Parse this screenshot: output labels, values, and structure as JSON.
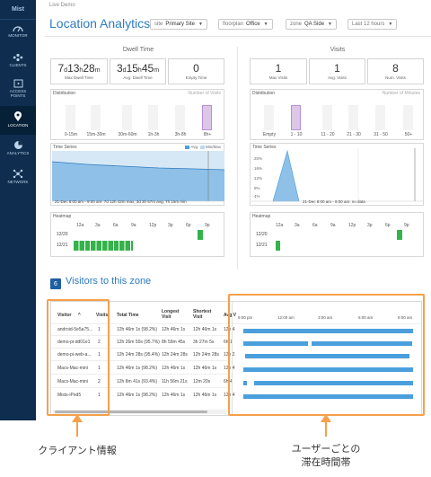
{
  "brand": "Mist",
  "nav": [
    {
      "label": "MONITOR",
      "icon": "gauge-icon"
    },
    {
      "label": "CLIENTS",
      "icon": "clients-icon"
    },
    {
      "label": "ACCESS POINTS",
      "icon": "access-point-icon"
    },
    {
      "label": "LOCATION",
      "icon": "location-pin-icon",
      "active": true
    },
    {
      "label": "ANALYTICS",
      "icon": "pie-chart-icon"
    },
    {
      "label": "NETWORK",
      "icon": "network-icon"
    }
  ],
  "breadcrumb": "Live Demo",
  "page_title": "Location Analytics",
  "filters": {
    "site": {
      "label": "site",
      "value": "Primary Site"
    },
    "floorplan": {
      "label": "floorplan",
      "value": "Office"
    },
    "zone": {
      "label": "zone",
      "value": "QA Side"
    },
    "range": {
      "value": "Last 12 hours"
    }
  },
  "dwell": {
    "title": "Dwell Time",
    "stats": [
      {
        "value_parts": [
          "7",
          "d",
          "13",
          "h",
          "28",
          "m"
        ],
        "label": "Max Dwell Time"
      },
      {
        "value_parts": [
          "3",
          "d",
          "15",
          "h",
          "45",
          "m"
        ],
        "label": "Avg. Dwell Time"
      },
      {
        "value_parts": [
          "0"
        ],
        "label": "Empty Time"
      }
    ],
    "distribution": {
      "title": "Distribution",
      "right": "Number of Visits",
      "categories": [
        "0-15m",
        "15m-30m",
        "30m-60m",
        "1h-3h",
        "3h-8h",
        "8h+"
      ],
      "highlight": 5
    },
    "timeseries": {
      "title": "Time Series",
      "legend": [
        "Avg",
        "Min/Max"
      ],
      "footer": "21-Dec 8:00 am - 9:00 am: 7d 12h 42m max, 3d 3h 57m avg, 7h 15m min"
    },
    "heatmap": {
      "title": "Heatmap",
      "hours": [
        "12a",
        "3a",
        "6a",
        "9a",
        "12p",
        "3p",
        "6p",
        "9p"
      ],
      "rows": [
        "12/20",
        "12/21"
      ]
    }
  },
  "visits": {
    "title": "Visits",
    "stats": [
      {
        "value": "1",
        "label": "Max Visits"
      },
      {
        "value": "1",
        "label": "Avg. Visits"
      },
      {
        "value": "8",
        "label": "Num. Visits"
      }
    ],
    "distribution": {
      "title": "Distribution",
      "right": "Number of Minutes",
      "categories": [
        "Empty",
        "1 - 10",
        "11 - 20",
        "21 - 30",
        "31 - 50",
        "50+"
      ],
      "highlight": 1
    },
    "timeseries": {
      "title": "Time Series",
      "footer": "21-Dec 8:00 am - 9:00 am: no data",
      "yticks": [
        "20%",
        "16%",
        "12%",
        "8%",
        "4%"
      ]
    },
    "heatmap": {
      "title": "Heatmap",
      "hours": [
        "12a",
        "3a",
        "6a",
        "9a",
        "12p",
        "3p",
        "6p",
        "9p"
      ],
      "rows": [
        "12/20",
        "12/21"
      ]
    }
  },
  "visitors": {
    "badge": "6",
    "title": "Visitors to this zone",
    "columns": [
      "Visitor",
      "Visits",
      "Total Time",
      "Longest Visit",
      "Shortest Visit",
      "Avg V"
    ],
    "rows": [
      {
        "visitor": "android-5e5a75...",
        "visits": "1",
        "total": "12h 46m 1s (98.2%)",
        "longest": "12h 46m 1s",
        "shortest": "12h 46m 1s",
        "avg": "12h 4"
      },
      {
        "visitor": "demo-pi-dd01e1",
        "visits": "2",
        "total": "12h 26m 50s (95.7%)",
        "longest": "8h 59m 45s",
        "shortest": "3h 27m 5s",
        "avg": "6h 1"
      },
      {
        "visitor": "demo-pi-web-a...",
        "visits": "1",
        "total": "12h 24m 28s (95.4%)",
        "longest": "12h 24m 28s",
        "shortest": "12h 24m 28s",
        "avg": "12h 2"
      },
      {
        "visitor": "Macs-Mac-mini",
        "visits": "1",
        "total": "12h 46m 1s (98.2%)",
        "longest": "12h 46m 1s",
        "shortest": "12h 46m 1s",
        "avg": "12h 4"
      },
      {
        "visitor": "Macs-Mac-mini",
        "visits": "2",
        "total": "12h 8m 41s (93.4%)",
        "longest": "11h 56m 21s",
        "shortest": "12m 20s",
        "avg": "6h 4"
      },
      {
        "visitor": "Mists-iPod5",
        "visits": "1",
        "total": "12h 46m 1s (98.2%)",
        "longest": "12h 46m 1s",
        "shortest": "12h 46m 1s",
        "avg": "12h 4"
      }
    ],
    "timeline_ticks": [
      "9:00 pm",
      "12:00 am",
      "3:00 am",
      "6:00 am",
      "9:00 am"
    ]
  },
  "annotations": {
    "client_info": "クライアント情報",
    "per_user_stay_line1": "ユーザーごとの",
    "per_user_stay_line2": "滞在時間帯"
  },
  "colors": {
    "sidebar": "#0f2d4e",
    "accent": "#2f7bbf",
    "heatmap": "#34b34a",
    "bar": "#4a9fdc",
    "highlight": "#dcc7e8",
    "annotation": "#f5a04a"
  }
}
